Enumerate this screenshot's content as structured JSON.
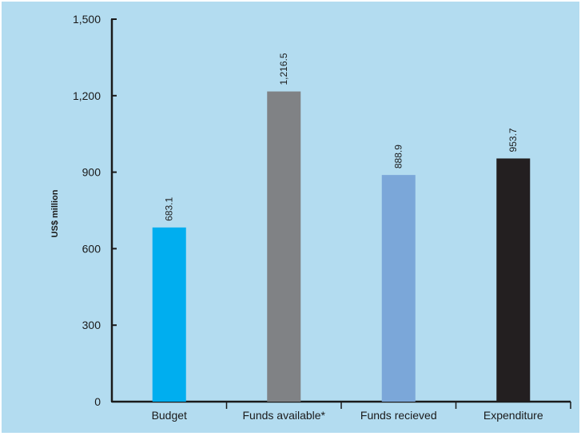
{
  "chart_data": {
    "type": "bar",
    "title": "",
    "xlabel": "",
    "ylabel": "US$ million",
    "ylim": [
      0,
      1500
    ],
    "yticks": [
      0,
      300,
      600,
      900,
      1200,
      1500
    ],
    "ytick_labels": [
      "0",
      "300",
      "600",
      "900",
      "1,200",
      "1,500"
    ],
    "categories": [
      "Budget",
      "Funds available*",
      "Funds recieved",
      "Expenditure"
    ],
    "values": [
      683.1,
      1216.5,
      888.9,
      953.7
    ],
    "value_labels": [
      "683.1",
      "1,216.5",
      "888.9",
      "953.7"
    ],
    "colors": [
      "#00aeef",
      "#808285",
      "#7ba7d9",
      "#231f20"
    ],
    "grid": false,
    "background": "#b3dcf0"
  }
}
